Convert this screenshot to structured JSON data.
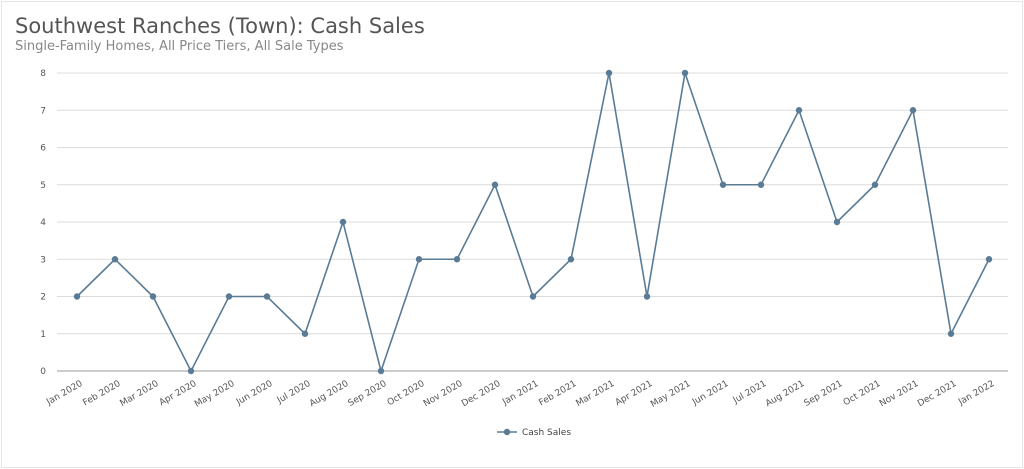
{
  "chart_data": {
    "type": "line",
    "title": "Southwest Ranches (Town): Cash Sales",
    "subtitle": "Single-Family Homes, All Price Tiers, All Sale Types",
    "xlabel": "",
    "ylabel": "",
    "ylim": [
      0,
      8
    ],
    "yticks": [
      "0",
      "1",
      "2",
      "3",
      "4",
      "5",
      "6",
      "7",
      "8"
    ],
    "grid": true,
    "legend_position": "bottom",
    "categories": [
      "Jan 2020",
      "Feb 2020",
      "Mar 2020",
      "Apr 2020",
      "May 2020",
      "Jun 2020",
      "Jul 2020",
      "Aug 2020",
      "Sep 2020",
      "Oct 2020",
      "Nov 2020",
      "Dec 2020",
      "Jan 2021",
      "Feb 2021",
      "Mar 2021",
      "Apr 2021",
      "May 2021",
      "Jun 2021",
      "Jul 2021",
      "Aug 2021",
      "Sep 2021",
      "Oct 2021",
      "Nov 2021",
      "Dec 2021",
      "Jan 2022"
    ],
    "series": [
      {
        "name": "Cash Sales",
        "color": "#5a7b96",
        "values": [
          2,
          3,
          2,
          0,
          2,
          2,
          1,
          4,
          0,
          3,
          3,
          5,
          2,
          3,
          8,
          2,
          8,
          5,
          5,
          7,
          4,
          5,
          7,
          1,
          3
        ]
      }
    ]
  }
}
